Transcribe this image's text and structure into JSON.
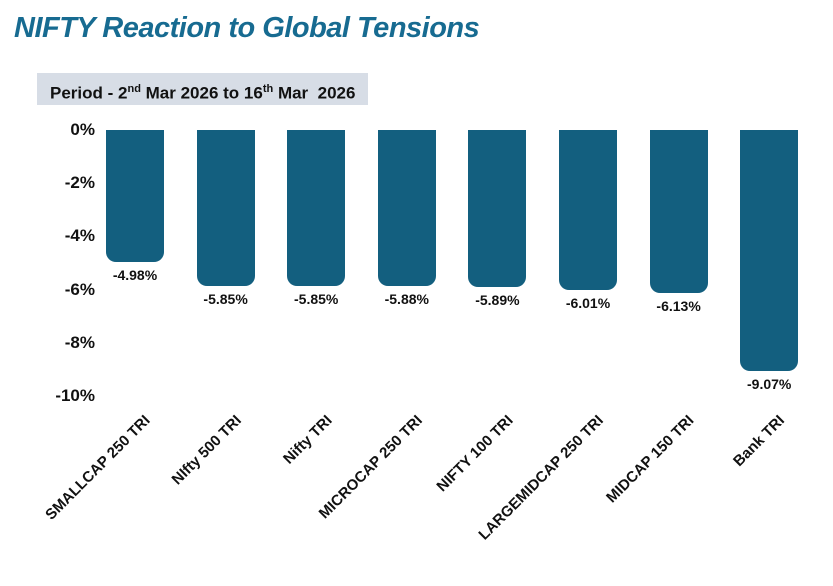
{
  "title": "NIFTY Reaction to Global Tensions",
  "period": {
    "full": "Period - 2nd Mar 2026 to 16th Mar 2026",
    "segments": [
      {
        "text": "Period - 2",
        "sup": false
      },
      {
        "text": "nd",
        "sup": true
      },
      {
        "text": " Mar 2026 to 16",
        "sup": false
      },
      {
        "text": "th",
        "sup": true
      },
      {
        "text": " Mar  2026",
        "sup": false
      }
    ]
  },
  "chart_data": {
    "type": "bar",
    "title": "NIFTY Reaction to Global Tensions",
    "subtitle": "Period - 2nd Mar 2026 to 16th Mar 2026",
    "categories": [
      "SMALLCAP 250 TRI",
      "NIfty 500 TRI",
      "Nifty TRI",
      "MICROCAP 250 TRI",
      "NIFTY 100 TRI",
      "LARGEMIDCAP 250 TRI",
      "MIDCAP 150 TRI",
      "Bank TRI"
    ],
    "values": [
      -4.98,
      -5.85,
      -5.85,
      -5.88,
      -5.89,
      -6.01,
      -6.13,
      -9.07
    ],
    "value_labels": [
      "-4.98%",
      "-5.85%",
      "-5.85%",
      "-5.88%",
      "-5.89%",
      "-6.01%",
      "-6.13%",
      "-9.07%"
    ],
    "y_ticks": [
      "0%",
      "-2%",
      "-4%",
      "-6%",
      "-8%",
      "-10%"
    ],
    "y_tick_values": [
      0,
      -2,
      -4,
      -6,
      -8,
      -10
    ],
    "ylim": [
      -10,
      0
    ],
    "xlabel": "",
    "ylabel": "",
    "grid": false,
    "legend": false
  },
  "colors": {
    "title": "#176b91",
    "bar": "#135f7f",
    "period_badge_bg": "#d7dde6",
    "label_text": "#111111"
  }
}
